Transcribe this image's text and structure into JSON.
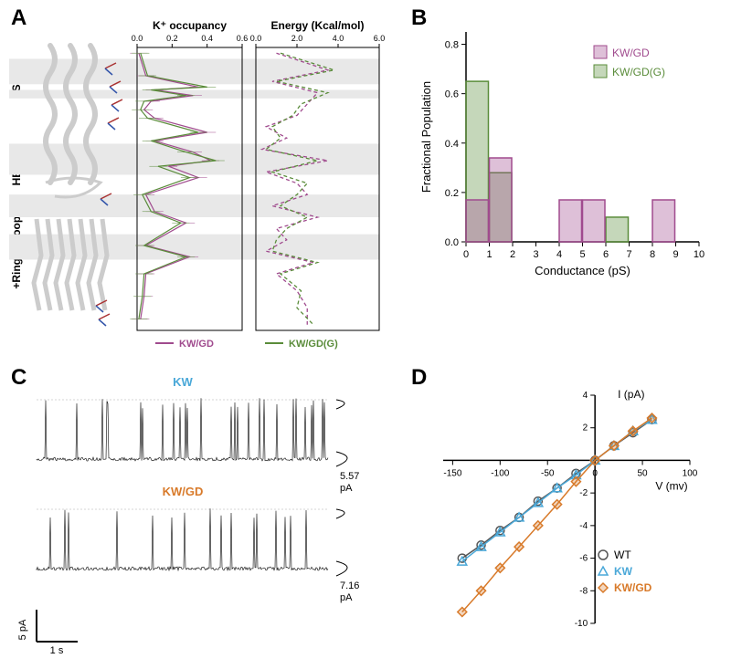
{
  "panels": {
    "A": "A",
    "B": "B",
    "C": "C",
    "D": "D"
  },
  "colors": {
    "kw_gd": "#a04b8e",
    "kw_gd_g": "#5a8c3a",
    "kw": "#4aa8d8",
    "wt": "#555555",
    "kw_gd_orange": "#d87a2a",
    "trace_black": "#000000",
    "band": "#e8e8e8",
    "protein": "#cccccc",
    "axis": "#000000"
  },
  "A": {
    "region_labels": [
      "SF",
      "HBC",
      "G-loop",
      "+Ring"
    ],
    "region_y": [
      0.1,
      0.38,
      0.56,
      0.7
    ],
    "header_occ": "K⁺ occupancy",
    "header_energy": "Energy (Kcal/mol)",
    "occ_ticks": [
      "0.0",
      "0.2",
      "0.4",
      "0.6"
    ],
    "energy_ticks": [
      "0.0",
      "2.0",
      "4.0",
      "6.0"
    ],
    "legend_kw_gd": "KW/GD",
    "legend_kw_gd_g": "KW/GD(G)",
    "bands": [
      [
        0.04,
        0.13
      ],
      [
        0.15,
        0.18
      ],
      [
        0.34,
        0.45
      ],
      [
        0.52,
        0.6
      ],
      [
        0.66,
        0.75
      ]
    ],
    "occ_kw_gd": [
      [
        0.02,
        0.01
      ],
      [
        0.1,
        0.05
      ],
      [
        0.14,
        0.35
      ],
      [
        0.15,
        0.1
      ],
      [
        0.17,
        0.32
      ],
      [
        0.19,
        0.08
      ],
      [
        0.22,
        0.04
      ],
      [
        0.25,
        0.1
      ],
      [
        0.3,
        0.4
      ],
      [
        0.33,
        0.1
      ],
      [
        0.37,
        0.32
      ],
      [
        0.4,
        0.42
      ],
      [
        0.42,
        0.18
      ],
      [
        0.46,
        0.35
      ],
      [
        0.52,
        0.05
      ],
      [
        0.58,
        0.1
      ],
      [
        0.62,
        0.28
      ],
      [
        0.7,
        0.05
      ],
      [
        0.74,
        0.3
      ],
      [
        0.8,
        0.05
      ],
      [
        0.88,
        0.04
      ],
      [
        0.96,
        0.02
      ]
    ],
    "occ_kw_gd_g": [
      [
        0.02,
        0.02
      ],
      [
        0.1,
        0.06
      ],
      [
        0.14,
        0.4
      ],
      [
        0.15,
        0.08
      ],
      [
        0.17,
        0.28
      ],
      [
        0.19,
        0.04
      ],
      [
        0.22,
        0.02
      ],
      [
        0.25,
        0.06
      ],
      [
        0.3,
        0.35
      ],
      [
        0.33,
        0.08
      ],
      [
        0.37,
        0.28
      ],
      [
        0.4,
        0.45
      ],
      [
        0.42,
        0.12
      ],
      [
        0.46,
        0.3
      ],
      [
        0.52,
        0.03
      ],
      [
        0.58,
        0.08
      ],
      [
        0.62,
        0.25
      ],
      [
        0.7,
        0.04
      ],
      [
        0.74,
        0.28
      ],
      [
        0.8,
        0.04
      ],
      [
        0.88,
        0.03
      ],
      [
        0.96,
        0.01
      ]
    ],
    "energy_kw_gd": [
      [
        0.02,
        1.0
      ],
      [
        0.08,
        3.5
      ],
      [
        0.12,
        0.8
      ],
      [
        0.16,
        3.0
      ],
      [
        0.2,
        2.5
      ],
      [
        0.24,
        2.0
      ],
      [
        0.28,
        0.5
      ],
      [
        0.32,
        1.5
      ],
      [
        0.36,
        0.3
      ],
      [
        0.4,
        3.5
      ],
      [
        0.44,
        0.5
      ],
      [
        0.48,
        2.0
      ],
      [
        0.52,
        2.5
      ],
      [
        0.56,
        0.8
      ],
      [
        0.6,
        3.0
      ],
      [
        0.64,
        1.0
      ],
      [
        0.68,
        1.5
      ],
      [
        0.72,
        0.5
      ],
      [
        0.76,
        2.8
      ],
      [
        0.8,
        1.0
      ],
      [
        0.86,
        2.0
      ],
      [
        0.92,
        2.5
      ],
      [
        0.98,
        2.5
      ]
    ],
    "energy_kw_gd_g": [
      [
        0.02,
        1.2
      ],
      [
        0.08,
        3.8
      ],
      [
        0.12,
        1.0
      ],
      [
        0.16,
        3.5
      ],
      [
        0.2,
        2.2
      ],
      [
        0.24,
        1.8
      ],
      [
        0.28,
        0.8
      ],
      [
        0.32,
        1.2
      ],
      [
        0.36,
        0.5
      ],
      [
        0.4,
        3.0
      ],
      [
        0.44,
        0.8
      ],
      [
        0.48,
        2.5
      ],
      [
        0.52,
        2.0
      ],
      [
        0.56,
        1.2
      ],
      [
        0.6,
        2.5
      ],
      [
        0.64,
        1.5
      ],
      [
        0.68,
        1.0
      ],
      [
        0.72,
        0.8
      ],
      [
        0.76,
        3.0
      ],
      [
        0.8,
        1.2
      ],
      [
        0.86,
        2.2
      ],
      [
        0.92,
        2.0
      ],
      [
        0.98,
        2.8
      ]
    ]
  },
  "B": {
    "xlabel": "Conductance (pS)",
    "ylabel": "Fractional Population",
    "xlim": [
      0,
      10
    ],
    "ylim": [
      0,
      0.85
    ],
    "xticks": [
      0,
      1,
      2,
      3,
      4,
      5,
      6,
      7,
      8,
      9,
      10
    ],
    "yticks": [
      0.0,
      0.2,
      0.4,
      0.6,
      0.8
    ],
    "legend_kw_gd": "KW/GD",
    "legend_kw_gd_g": "KW/GD(G)",
    "bars_kw_gd": [
      [
        0,
        0.17
      ],
      [
        1,
        0.34
      ],
      [
        4,
        0.17
      ],
      [
        5,
        0.17
      ],
      [
        8,
        0.17
      ]
    ],
    "bars_kw_gd_g": [
      [
        0,
        0.65
      ],
      [
        1,
        0.28
      ],
      [
        6,
        0.1
      ]
    ]
  },
  "C": {
    "label_kw": "KW",
    "label_kw_gd": "KW/GD",
    "val_kw": "5.57 pA",
    "val_kw_gd": "7.16 pA",
    "scale_y": "5 pA",
    "scale_x": "1 s"
  },
  "D": {
    "xlabel": "V (mv)",
    "ylabel": "I (pA)",
    "xlim": [
      -160,
      100
    ],
    "ylim": [
      -10,
      4
    ],
    "xticks": [
      -150,
      -100,
      -50,
      0,
      50,
      100
    ],
    "yticks": [
      -10,
      -8,
      -6,
      -4,
      -2,
      2,
      4
    ],
    "legend_wt": "WT",
    "legend_kw": "KW",
    "legend_kw_gd": "KW/GD",
    "wt": [
      [
        -140,
        -6.0
      ],
      [
        -120,
        -5.2
      ],
      [
        -100,
        -4.3
      ],
      [
        -80,
        -3.5
      ],
      [
        -60,
        -2.5
      ],
      [
        -40,
        -1.7
      ],
      [
        -20,
        -0.8
      ],
      [
        0,
        0
      ],
      [
        20,
        0.9
      ],
      [
        40,
        1.7
      ],
      [
        60,
        2.5
      ]
    ],
    "kw": [
      [
        -140,
        -6.2
      ],
      [
        -120,
        -5.3
      ],
      [
        -100,
        -4.4
      ],
      [
        -80,
        -3.5
      ],
      [
        -60,
        -2.6
      ],
      [
        -40,
        -1.7
      ],
      [
        -20,
        -0.9
      ],
      [
        0,
        0
      ],
      [
        20,
        0.9
      ],
      [
        40,
        1.8
      ],
      [
        60,
        2.5
      ]
    ],
    "kw_gd": [
      [
        -140,
        -9.3
      ],
      [
        -120,
        -8.0
      ],
      [
        -100,
        -6.6
      ],
      [
        -80,
        -5.3
      ],
      [
        -60,
        -4.0
      ],
      [
        -40,
        -2.7
      ],
      [
        -20,
        -1.3
      ],
      [
        0,
        0
      ],
      [
        20,
        0.9
      ],
      [
        40,
        1.8
      ],
      [
        60,
        2.6
      ]
    ]
  }
}
